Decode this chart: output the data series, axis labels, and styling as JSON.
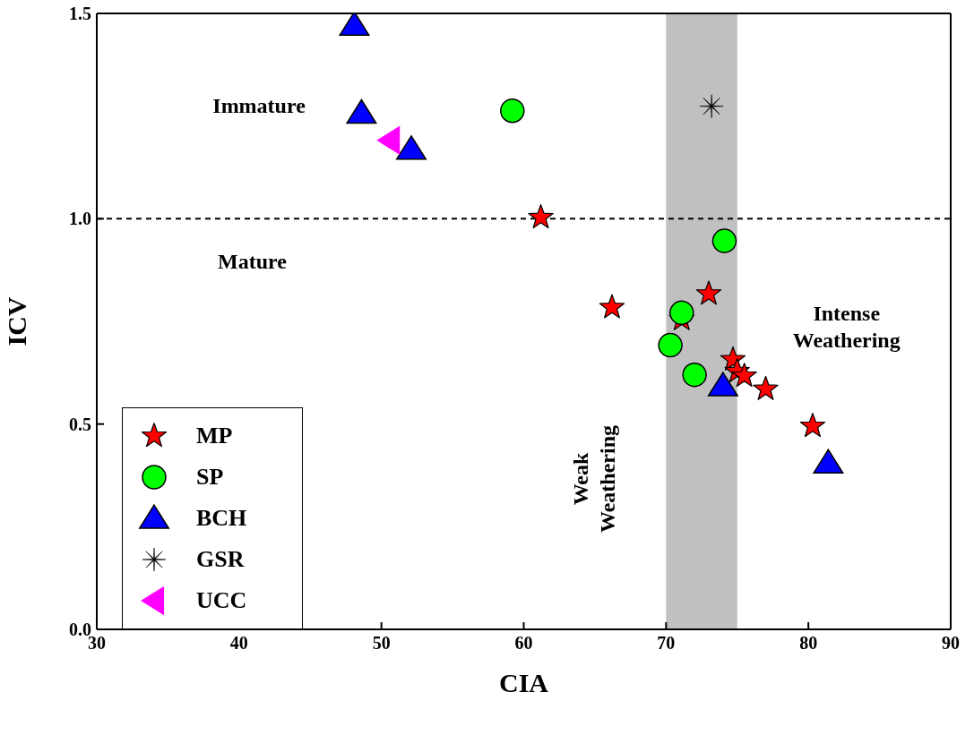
{
  "chart_data": {
    "type": "scatter",
    "xlabel": "CIA",
    "ylabel": "ICV",
    "xlim": [
      30,
      90
    ],
    "xticks": [
      30,
      40,
      50,
      60,
      70,
      80,
      90
    ],
    "ylim": [
      0,
      1.5
    ],
    "yticks": [
      {
        "value": 0,
        "label": "0.0"
      },
      {
        "value": 0.5,
        "label": "0.5"
      },
      {
        "value": 1,
        "label": "1.0"
      },
      {
        "value": 1.5,
        "label": "1.5"
      }
    ],
    "grid": false,
    "legend": "bottom left",
    "series": [
      {
        "name": "MP",
        "color": "#ff0000",
        "marker": "star",
        "x": [
          61.2,
          66.2,
          73.0,
          71.1,
          74.7,
          75.0,
          75.5,
          77.0,
          80.3
        ],
        "values": [
          1.003,
          0.784,
          0.817,
          0.755,
          0.657,
          0.628,
          0.617,
          0.585,
          0.495
        ]
      },
      {
        "name": "SP",
        "color": "#00ff00",
        "marker": "circle",
        "x": [
          59.2,
          74.1,
          71.1,
          70.3,
          72.0
        ],
        "values": [
          1.263,
          0.946,
          0.771,
          0.692,
          0.62
        ]
      },
      {
        "name": "BCH",
        "color": "#0000ff",
        "marker": "triangle",
        "x": [
          48.1,
          48.6,
          52.1,
          74.0,
          81.4
        ],
        "values": [
          1.471,
          1.257,
          1.169,
          0.593,
          0.405
        ]
      },
      {
        "name": "GSR",
        "color": "#000000",
        "marker": "cross",
        "x": [
          73.2
        ],
        "values": [
          1.274
        ]
      },
      {
        "name": "UCC",
        "color": "#ff00ff",
        "marker": "triangle-left",
        "x": [
          50.6
        ],
        "values": [
          1.191
        ]
      }
    ],
    "ref_lines": [
      {
        "axis": "y",
        "value": 1,
        "color": "#000000",
        "line_style": "dashed"
      }
    ],
    "bands": [
      {
        "axis": "x",
        "from": 70,
        "to": 75,
        "color": "#c0c0c0"
      }
    ],
    "annotations": [
      "Immature",
      "Mature",
      "Intense\nWeathering",
      "Weak\nWeathering"
    ]
  }
}
